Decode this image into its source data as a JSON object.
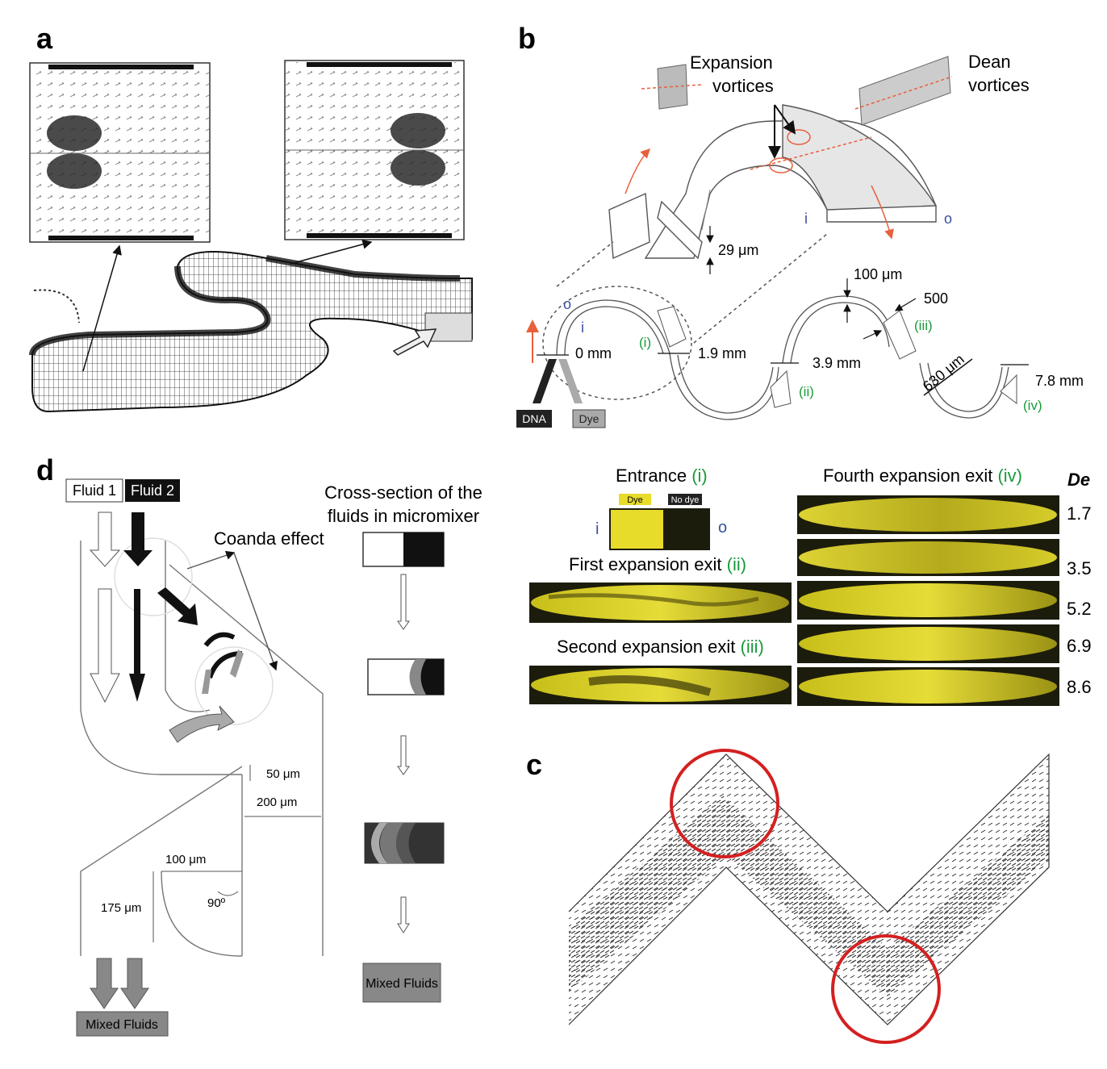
{
  "panel_letters": {
    "a": "a",
    "b": "b",
    "c": "c",
    "d": "d"
  },
  "panel_b": {
    "expansion_vortices": [
      "Expansion",
      "vortices"
    ],
    "dean_vortices": [
      "Dean",
      "vortices"
    ],
    "inner_label": "i",
    "outer_label": "o",
    "height_label": "29 μm",
    "width_label": "100 μm",
    "expansion_width_label": "500",
    "length_label": "630 μm",
    "positions": [
      "0 mm",
      "1.9 mm",
      "3.9 mm",
      "7.8 mm"
    ],
    "expansion_ids": [
      "(i)",
      "(ii)",
      "(iii)",
      "(iv)"
    ],
    "inlet_dna": "DNA",
    "inlet_dye": "Dye",
    "colors": {
      "green_label": "#1a9a3a",
      "blue_label": "#3a4fa0",
      "flow_arrow": "#e8603c"
    }
  },
  "panel_images": {
    "entrance_title": "Entrance",
    "entrance_id": "(i)",
    "dye_tag": "Dye",
    "no_dye_tag": "No dye",
    "inner_label": "i",
    "outer_label": "o",
    "first_title": "First expansion exit",
    "first_id": "(ii)",
    "second_title": "Second expansion exit",
    "second_id": "(iii)",
    "fourth_title": "Fourth expansion exit",
    "fourth_id": "(iv)",
    "de_header": "De",
    "de_values": [
      "1.7",
      "3.5",
      "5.2",
      "6.9",
      "8.6"
    ],
    "colors": {
      "dye_yellow": "#e8dc2a",
      "dark_bg": "#1c1c0c"
    }
  },
  "panel_d": {
    "fluid1": "Fluid 1",
    "fluid2": "Fluid 2",
    "coanda": "Coanda effect",
    "cross_section": [
      "Cross-section of the",
      "fluids in micromixer"
    ],
    "dim_50": "50 μm",
    "dim_200": "200 μm",
    "dim_100": "100 μm",
    "dim_175": "175 μm",
    "angle": "90º",
    "mixed_left": "Mixed Fluids",
    "mixed_right": "Mixed Fluids"
  },
  "panel_c": {
    "circle_color": "#d42020"
  }
}
